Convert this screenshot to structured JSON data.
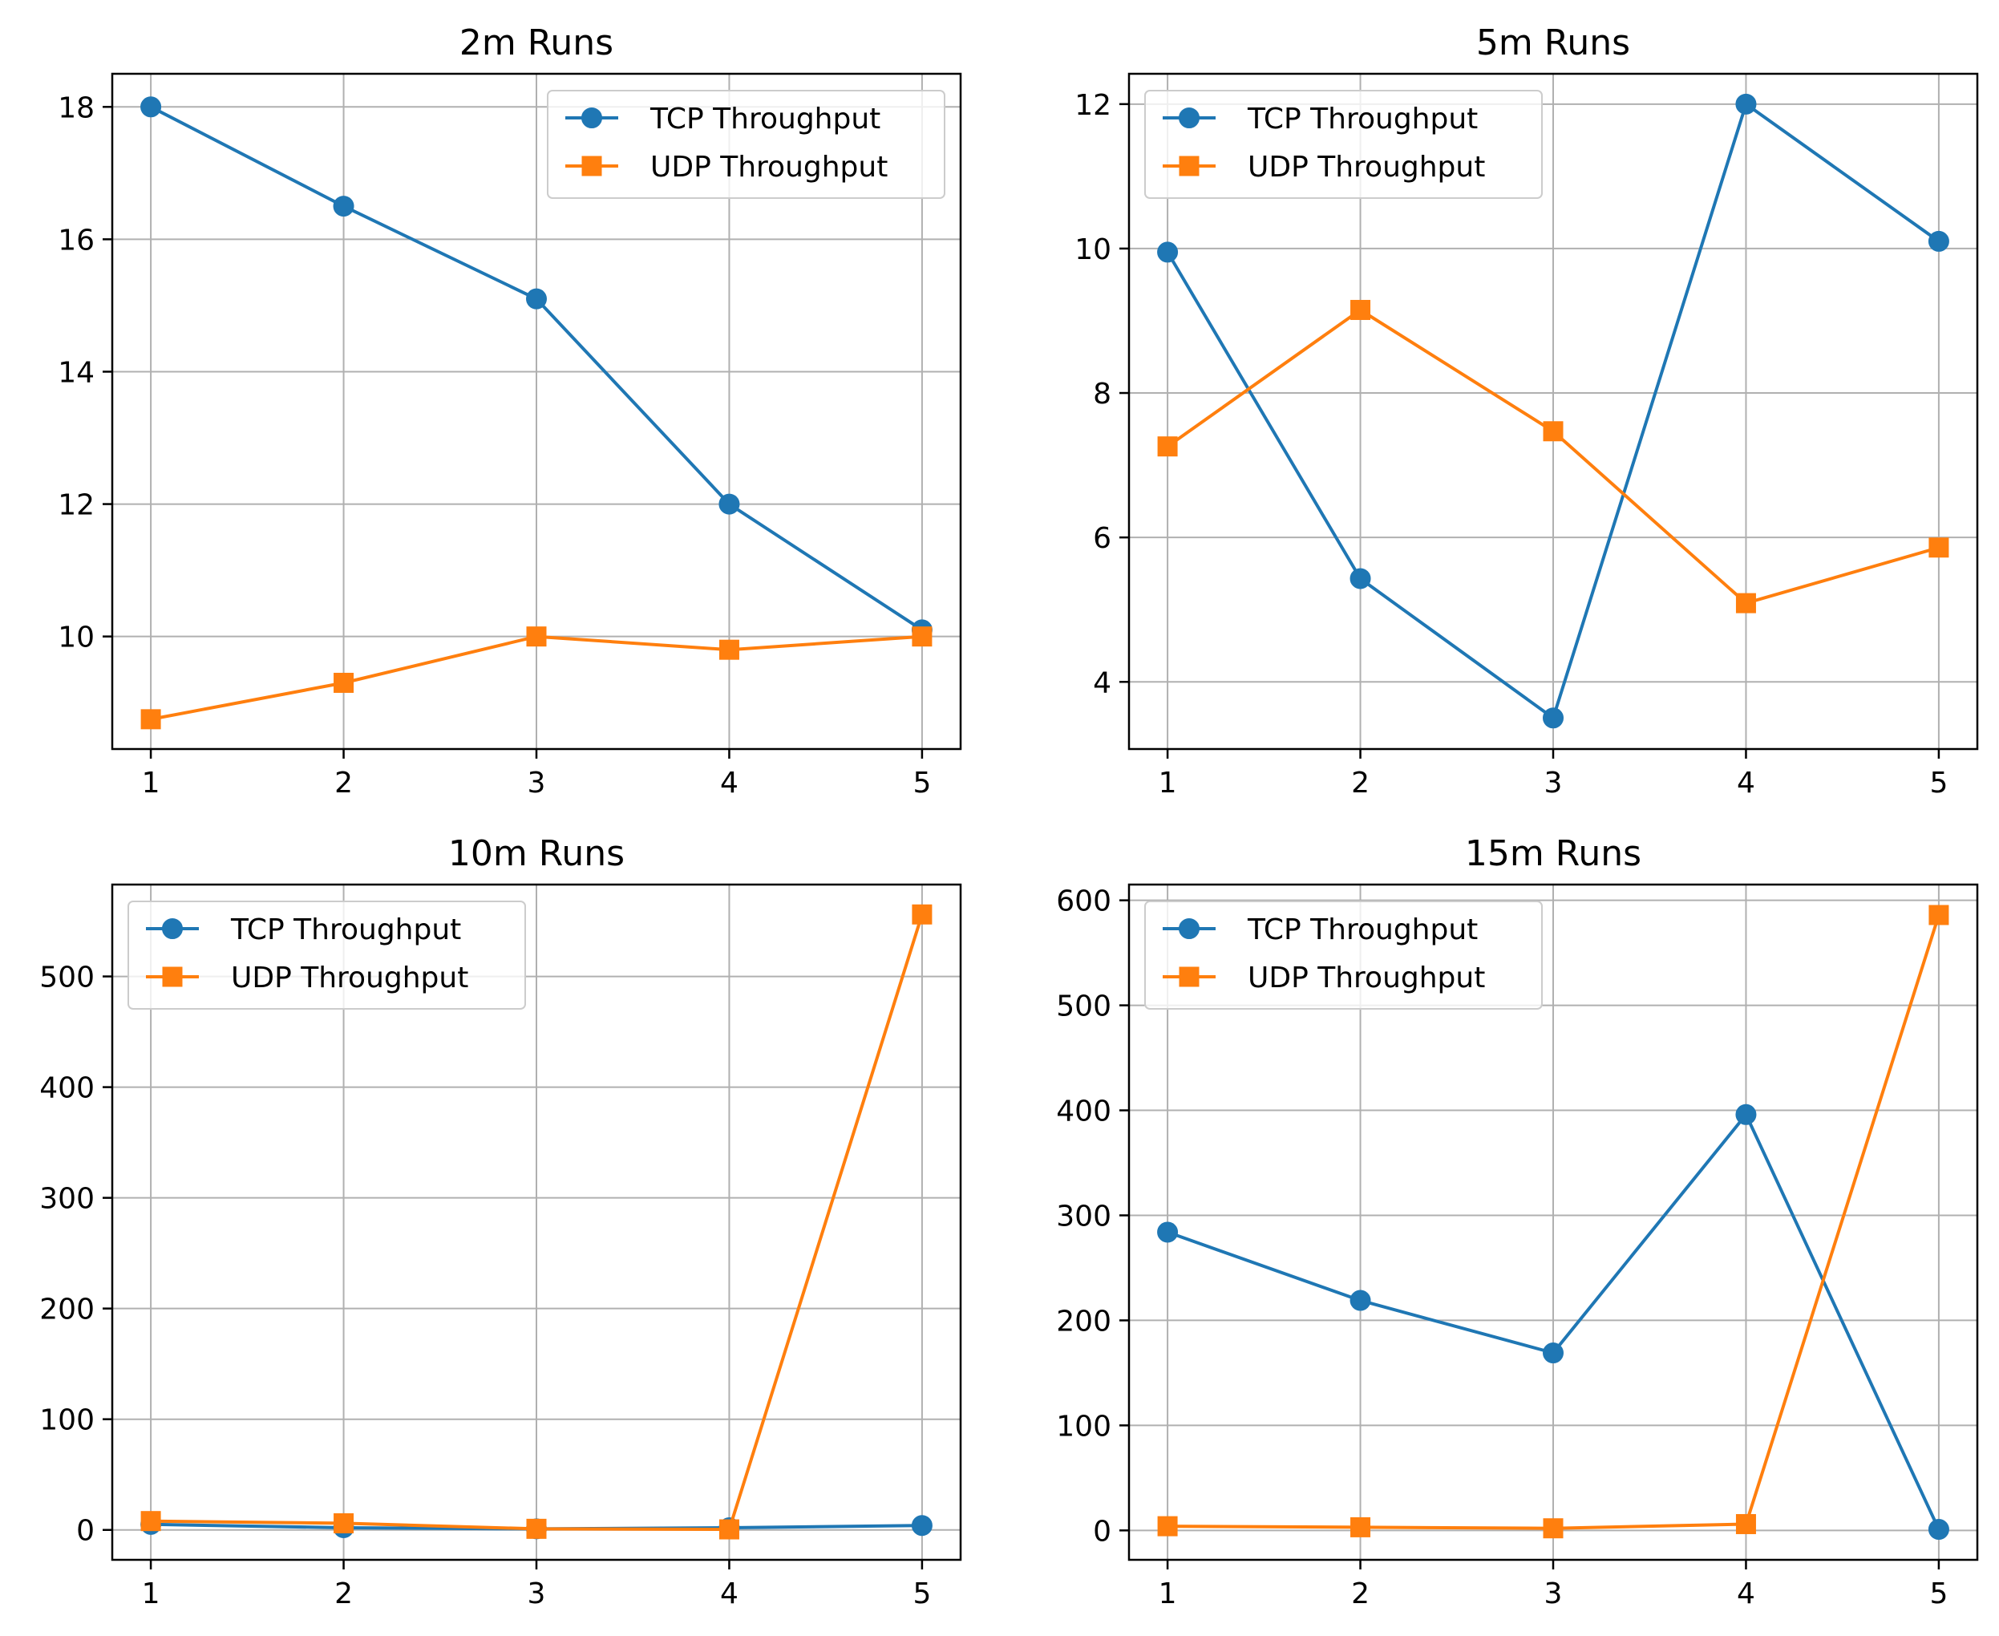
{
  "chart_data": [
    {
      "type": "line",
      "title": "2m Runs",
      "x": [
        1,
        2,
        3,
        4,
        5
      ],
      "xlim": [
        0.8,
        5.2
      ],
      "ylim": [
        8.3,
        18.5
      ],
      "xticks": [
        "1",
        "2",
        "3",
        "4",
        "5"
      ],
      "yticks": [
        10,
        12,
        14,
        16,
        18
      ],
      "grid": true,
      "legend": "upper right",
      "series": [
        {
          "name": "TCP Throughput",
          "color": "#1f77b4",
          "marker": "circle",
          "values": [
            18.0,
            16.5,
            15.1,
            12.0,
            10.1
          ]
        },
        {
          "name": "UDP Throughput",
          "color": "#ff7f0e",
          "marker": "square",
          "values": [
            8.75,
            9.3,
            10.0,
            9.8,
            10.0
          ]
        }
      ]
    },
    {
      "type": "line",
      "title": "5m Runs",
      "x": [
        1,
        2,
        3,
        4,
        5
      ],
      "xlim": [
        0.8,
        5.2
      ],
      "ylim": [
        3.07,
        12.42
      ],
      "xticks": [
        "1",
        "2",
        "3",
        "4",
        "5"
      ],
      "yticks": [
        4,
        6,
        8,
        10,
        12
      ],
      "grid": true,
      "legend": "upper left",
      "series": [
        {
          "name": "TCP Throughput",
          "color": "#1f77b4",
          "marker": "circle",
          "values": [
            9.95,
            5.43,
            3.5,
            12.0,
            10.1
          ]
        },
        {
          "name": "UDP Throughput",
          "color": "#ff7f0e",
          "marker": "square",
          "values": [
            7.26,
            9.15,
            7.47,
            5.09,
            5.86
          ]
        }
      ]
    },
    {
      "type": "line",
      "title": "10m Runs",
      "x": [
        1,
        2,
        3,
        4,
        5
      ],
      "xlim": [
        0.8,
        5.2
      ],
      "ylim": [
        -27,
        583
      ],
      "xticks": [
        "1",
        "2",
        "3",
        "4",
        "5"
      ],
      "yticks": [
        0,
        100,
        200,
        300,
        400,
        500
      ],
      "grid": true,
      "legend": "upper left",
      "series": [
        {
          "name": "TCP Throughput",
          "color": "#1f77b4",
          "marker": "circle",
          "values": [
            5,
            2,
            1,
            2,
            4
          ]
        },
        {
          "name": "UDP Throughput",
          "color": "#ff7f0e",
          "marker": "square",
          "values": [
            8,
            6,
            1,
            0.5,
            556
          ]
        }
      ]
    },
    {
      "type": "line",
      "title": "15m Runs",
      "x": [
        1,
        2,
        3,
        4,
        5
      ],
      "xlim": [
        0.8,
        5.2
      ],
      "ylim": [
        -28,
        615
      ],
      "xticks": [
        "1",
        "2",
        "3",
        "4",
        "5"
      ],
      "yticks": [
        0,
        100,
        200,
        300,
        400,
        500,
        600
      ],
      "grid": true,
      "legend": "upper left",
      "series": [
        {
          "name": "TCP Throughput",
          "color": "#1f77b4",
          "marker": "circle",
          "values": [
            284,
            219,
            169,
            396,
            1
          ]
        },
        {
          "name": "UDP Throughput",
          "color": "#ff7f0e",
          "marker": "square",
          "values": [
            4,
            3,
            2,
            6,
            586
          ]
        }
      ]
    }
  ]
}
